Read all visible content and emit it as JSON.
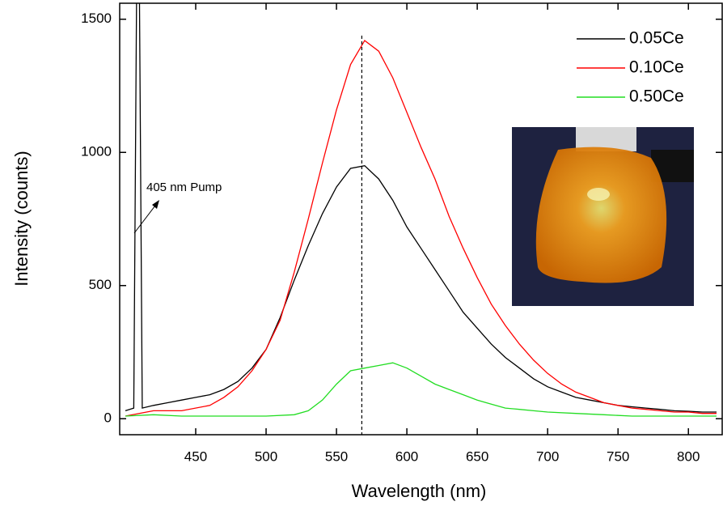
{
  "chart_data": {
    "type": "line",
    "xlabel": "Wavelength (nm)",
    "ylabel": "Intensity (counts)",
    "xlim": [
      396,
      824
    ],
    "ylim": [
      -60,
      1560
    ],
    "xticks": [
      450,
      500,
      550,
      600,
      650,
      700,
      750,
      800
    ],
    "yticks": [
      0,
      500,
      1000,
      1500
    ],
    "vline": 568,
    "annotation": "405 nm Pump",
    "legend": "upper right",
    "series": [
      {
        "name": "0.05Ce",
        "color": "#000000",
        "x": [
          400,
          406,
          408,
          410,
          412,
          420,
          430,
          440,
          450,
          460,
          470,
          480,
          490,
          500,
          510,
          520,
          530,
          540,
          550,
          560,
          570,
          580,
          590,
          600,
          610,
          620,
          630,
          640,
          650,
          660,
          670,
          680,
          690,
          700,
          710,
          720,
          730,
          740,
          750,
          760,
          770,
          780,
          790,
          800,
          810,
          820
        ],
        "values": [
          30,
          40,
          1600,
          1600,
          40,
          50,
          60,
          70,
          80,
          90,
          110,
          140,
          190,
          260,
          380,
          520,
          650,
          770,
          870,
          940,
          950,
          900,
          820,
          720,
          640,
          560,
          480,
          400,
          340,
          280,
          230,
          190,
          150,
          120,
          100,
          80,
          70,
          60,
          50,
          45,
          40,
          35,
          30,
          28,
          25,
          25
        ]
      },
      {
        "name": "0.10Ce",
        "color": "#ff0000",
        "x": [
          400,
          420,
          440,
          460,
          470,
          480,
          490,
          500,
          510,
          520,
          530,
          540,
          550,
          560,
          570,
          580,
          590,
          600,
          610,
          620,
          630,
          640,
          650,
          660,
          670,
          680,
          690,
          700,
          710,
          720,
          730,
          740,
          750,
          760,
          770,
          780,
          790,
          800,
          810,
          820
        ],
        "values": [
          10,
          30,
          30,
          50,
          80,
          120,
          180,
          260,
          370,
          550,
          750,
          960,
          1160,
          1330,
          1420,
          1380,
          1280,
          1150,
          1020,
          900,
          760,
          640,
          530,
          430,
          350,
          280,
          220,
          170,
          130,
          100,
          80,
          60,
          50,
          40,
          35,
          30,
          25,
          25,
          20,
          20
        ]
      },
      {
        "name": "0.50Ce",
        "color": "#22dd22",
        "x": [
          400,
          420,
          440,
          460,
          480,
          500,
          520,
          530,
          540,
          550,
          560,
          570,
          580,
          590,
          600,
          610,
          620,
          630,
          640,
          650,
          660,
          670,
          680,
          690,
          700,
          720,
          740,
          760,
          780,
          800,
          820
        ],
        "values": [
          10,
          15,
          10,
          10,
          10,
          10,
          15,
          30,
          70,
          130,
          180,
          190,
          200,
          210,
          190,
          160,
          130,
          110,
          90,
          70,
          55,
          40,
          35,
          30,
          25,
          20,
          15,
          10,
          10,
          10,
          10
        ]
      }
    ]
  }
}
